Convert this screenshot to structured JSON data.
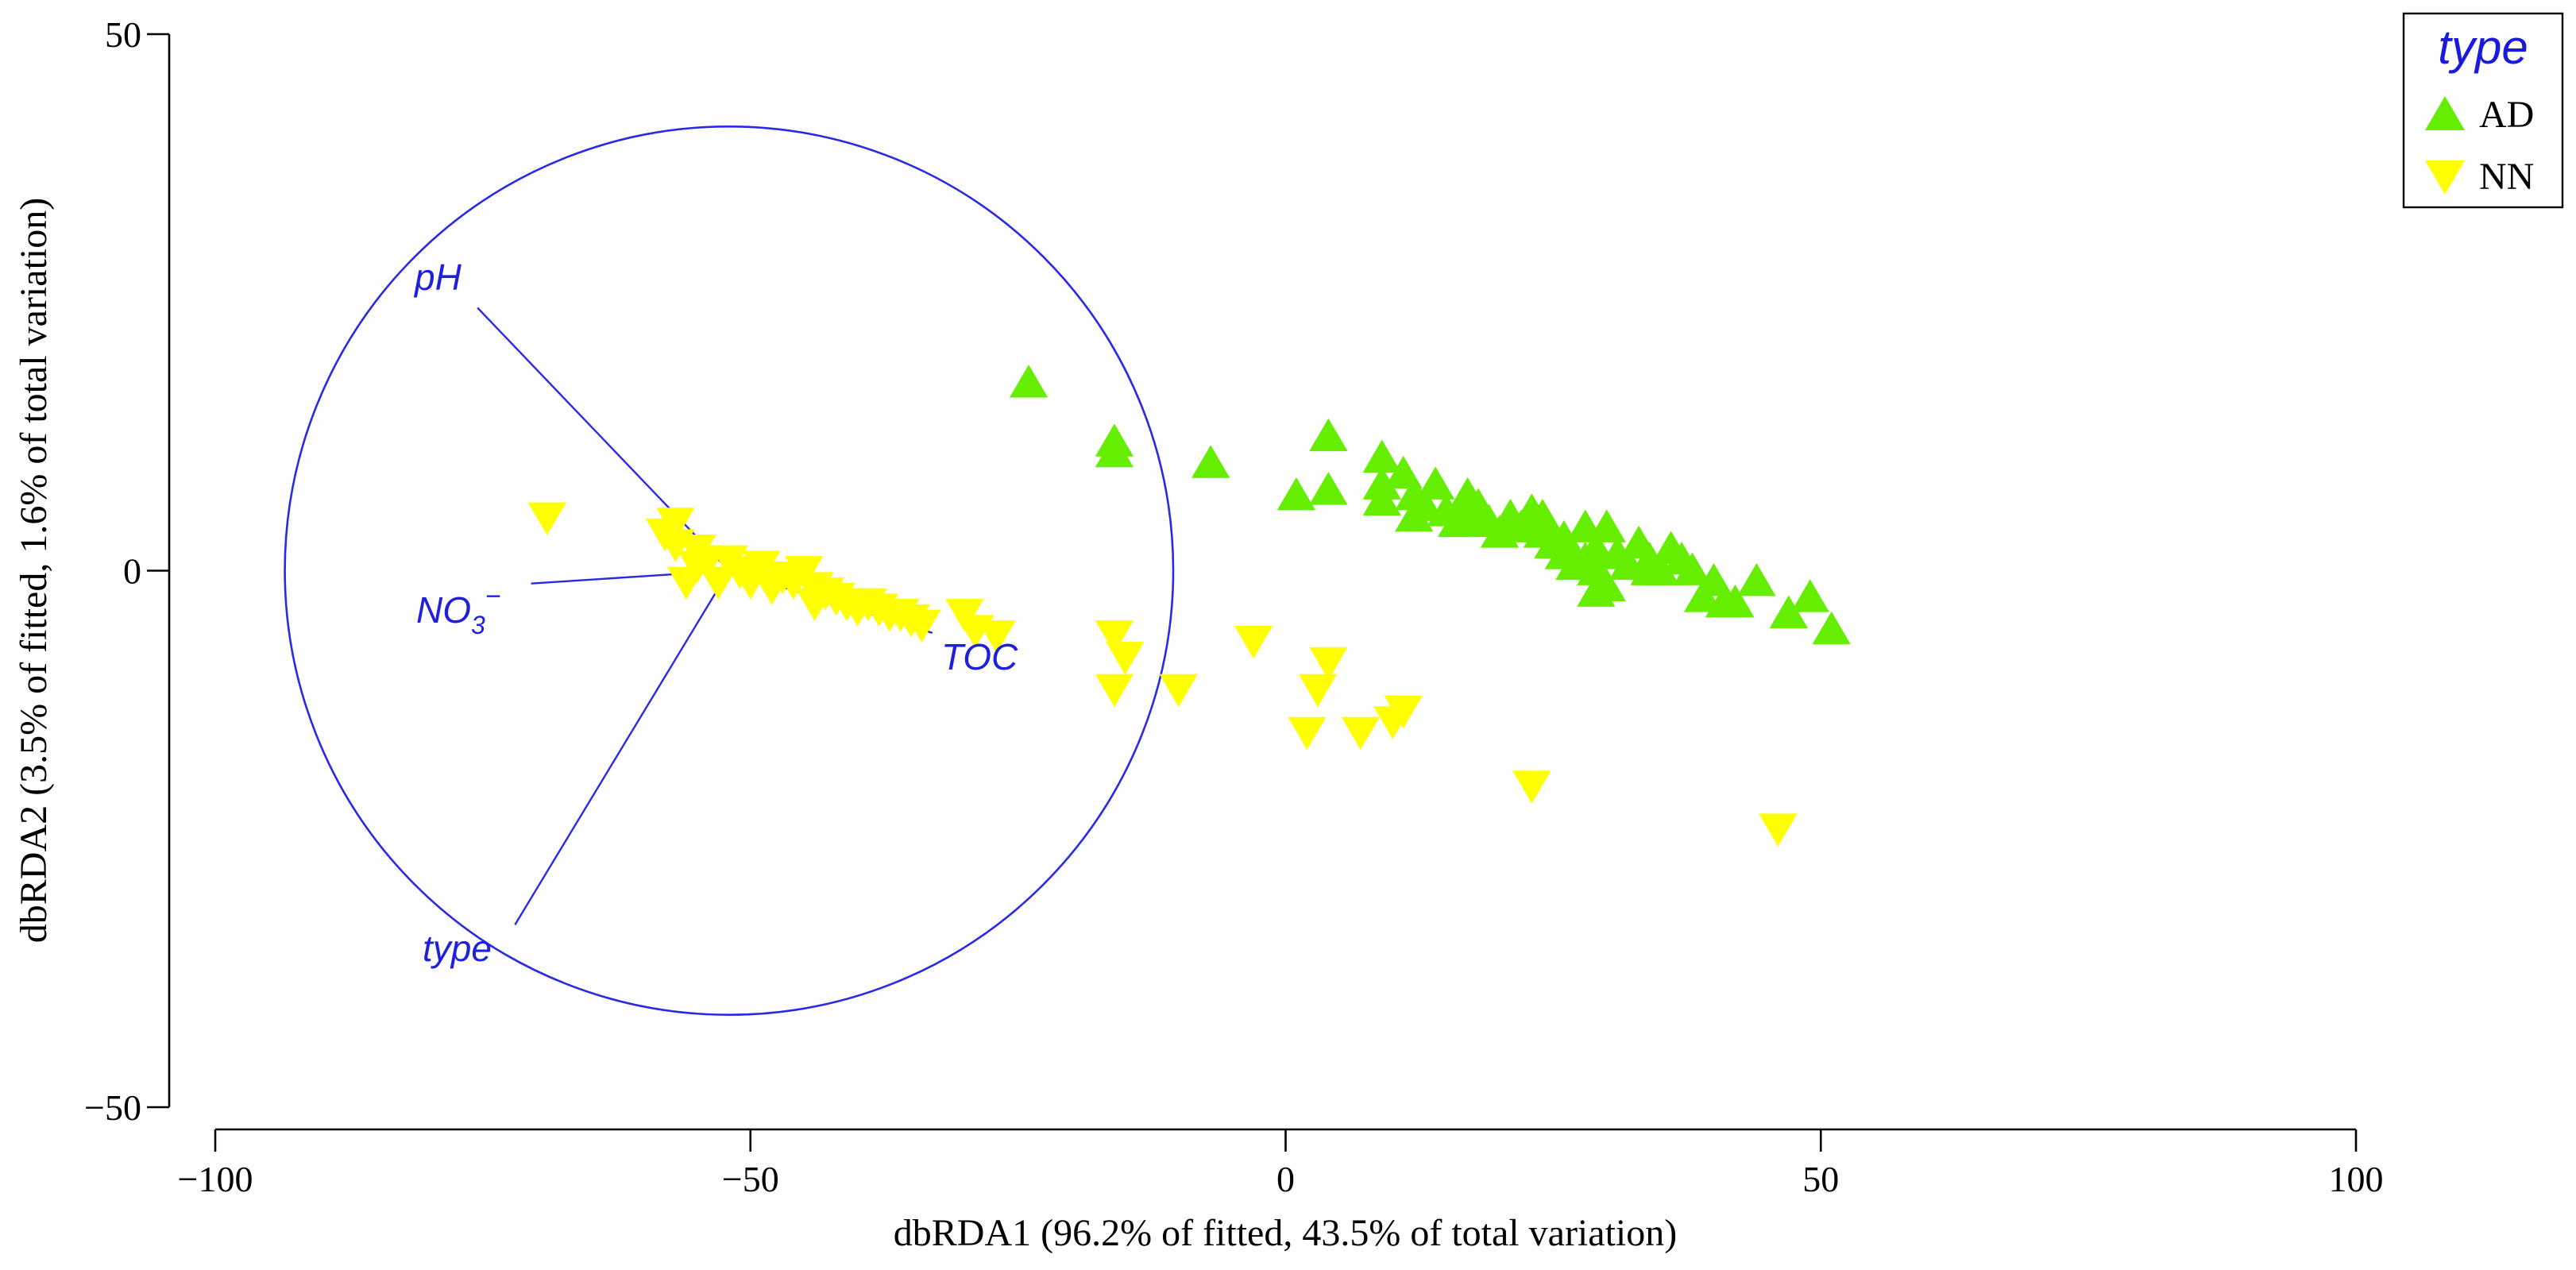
{
  "chart_data": {
    "type": "scatter",
    "title": "",
    "xlabel": "dbRDA1 (96.2% of fitted, 43.5% of total variation)",
    "ylabel": "dbRDA2 (3.5% of fitted, 1.6% of total variation)",
    "xlim": [
      -100,
      100
    ],
    "ylim": [
      -50,
      50
    ],
    "xticks": [
      -100,
      -50,
      0,
      50,
      100
    ],
    "yticks": [
      -50,
      0,
      50
    ],
    "xtick_labels": [
      "−100",
      "−50",
      "0",
      "50",
      "100"
    ],
    "ytick_labels": [
      "−50",
      "0",
      "50"
    ],
    "grid": false,
    "legend": {
      "title": "type",
      "position": "top-right",
      "entries": [
        {
          "label": "AD",
          "marker": "triangle-up",
          "color": "#66ee00"
        },
        {
          "label": "NN",
          "marker": "triangle-down",
          "color": "#ffff00"
        }
      ]
    },
    "circle": {
      "center": [
        -52,
        0
      ],
      "radius": 41.5,
      "color": "#2a2ae6"
    },
    "vectors": [
      {
        "label": "pH",
        "end": [
          -75.5,
          24.5
        ]
      },
      {
        "label": "NO3",
        "label_subscript": "3",
        "label_superscript": "−",
        "end": [
          -70.5,
          -1.2
        ]
      },
      {
        "label": "TOC",
        "end": [
          -33,
          -5.8
        ]
      },
      {
        "label": "type",
        "end": [
          -72,
          -33
        ]
      }
    ],
    "series": [
      {
        "name": "AD",
        "marker": "triangle-up",
        "color": "#66ee00",
        "points": [
          [
            -24,
            17.5
          ],
          [
            -16,
            12
          ],
          [
            -16,
            11
          ],
          [
            -7,
            10
          ],
          [
            1,
            7
          ],
          [
            4,
            12.5
          ],
          [
            4,
            7.5
          ],
          [
            9,
            10.5
          ],
          [
            9,
            8
          ],
          [
            9,
            6.5
          ],
          [
            11,
            9
          ],
          [
            12,
            7
          ],
          [
            12,
            5
          ],
          [
            13,
            6
          ],
          [
            14,
            8
          ],
          [
            15,
            5.5
          ],
          [
            16,
            4.5
          ],
          [
            17,
            7
          ],
          [
            17,
            5
          ],
          [
            18,
            6
          ],
          [
            19,
            4.5
          ],
          [
            20,
            3.5
          ],
          [
            21,
            5
          ],
          [
            22,
            4
          ],
          [
            23,
            5.5
          ],
          [
            24,
            3.5
          ],
          [
            24,
            5
          ],
          [
            25,
            2.5
          ],
          [
            26,
            1.5
          ],
          [
            26,
            3
          ],
          [
            27,
            0.5
          ],
          [
            28,
            4
          ],
          [
            28,
            1
          ],
          [
            29,
            2
          ],
          [
            29,
            -2
          ],
          [
            29,
            0
          ],
          [
            30,
            -1.5
          ],
          [
            30,
            4
          ],
          [
            31,
            1.5
          ],
          [
            32,
            0.5
          ],
          [
            33,
            2.5
          ],
          [
            34,
            1
          ],
          [
            34,
            0
          ],
          [
            35,
            0
          ],
          [
            36,
            2
          ],
          [
            37,
            1
          ],
          [
            38,
            0
          ],
          [
            39,
            -2.5
          ],
          [
            40,
            -1
          ],
          [
            41,
            -3
          ],
          [
            42,
            -3
          ],
          [
            44,
            -1
          ],
          [
            47,
            -4
          ],
          [
            49,
            -2.5
          ],
          [
            51,
            -5.5
          ]
        ]
      },
      {
        "name": "NN",
        "marker": "triangle-down",
        "color": "#ffff00",
        "points": [
          [
            -69,
            5
          ],
          [
            -58,
            3.5
          ],
          [
            -57,
            4.5
          ],
          [
            -57,
            2.5
          ],
          [
            -56,
            -1
          ],
          [
            -55,
            2
          ],
          [
            -55,
            0.5
          ],
          [
            -54,
            1
          ],
          [
            -53,
            -1
          ],
          [
            -52,
            1
          ],
          [
            -51,
            0
          ],
          [
            -50,
            -1
          ],
          [
            -49,
            0.5
          ],
          [
            -48,
            -1.5
          ],
          [
            -47,
            -0.5
          ],
          [
            -46,
            -1
          ],
          [
            -45,
            0
          ],
          [
            -44,
            -3
          ],
          [
            -44,
            -1.5
          ],
          [
            -43,
            -2
          ],
          [
            -42,
            -2.5
          ],
          [
            -41,
            -3
          ],
          [
            -40,
            -3.5
          ],
          [
            -39,
            -3
          ],
          [
            -38,
            -3.5
          ],
          [
            -37,
            -4
          ],
          [
            -36,
            -4
          ],
          [
            -35,
            -4.5
          ],
          [
            -34,
            -5
          ],
          [
            -30,
            -4
          ],
          [
            -29,
            -5.5
          ],
          [
            -27,
            -6
          ],
          [
            -16,
            -6
          ],
          [
            -15,
            -8
          ],
          [
            -16,
            -11
          ],
          [
            -10,
            -11
          ],
          [
            -3,
            -6.5
          ],
          [
            2,
            -15
          ],
          [
            3,
            -11
          ],
          [
            4,
            -8.5
          ],
          [
            7,
            -15
          ],
          [
            10,
            -14
          ],
          [
            11,
            -13
          ],
          [
            23,
            -20
          ],
          [
            46,
            -24
          ]
        ]
      }
    ]
  }
}
